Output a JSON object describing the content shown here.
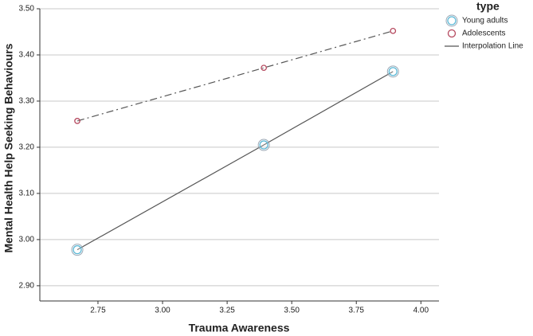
{
  "chart_data": {
    "type": "line",
    "x_label": "Trauma Awareness",
    "y_label": "Mental Health Help Seeking Behaviours",
    "legend_title": "type",
    "interpolation_label": "Interpolation Line",
    "x": [
      2.67,
      3.392,
      3.892
    ],
    "series": [
      {
        "name": "Young adults",
        "color": "#5bb8d6",
        "line_color": "#555555",
        "line_style": "solid",
        "values": [
          2.978,
          3.205,
          3.364
        ]
      },
      {
        "name": "Adolescents",
        "color": "#b5485e",
        "line_color": "#555555",
        "line_style": "dashdot",
        "values": [
          3.257,
          3.372,
          3.452
        ]
      }
    ],
    "xlim": [
      2.525,
      4.07
    ],
    "ylim": [
      2.867,
      3.5
    ],
    "xticks": [
      2.75,
      {
        "value": 3.0,
        "label": "3.00"
      },
      3.25,
      {
        "value": 3.5,
        "label": "3.50"
      },
      3.75,
      {
        "value": 4.0,
        "label": "4.00"
      }
    ],
    "yticks": [
      {
        "value": 2.9,
        "label": "2.90"
      },
      {
        "value": 3.0,
        "label": "3.00"
      },
      {
        "value": 3.1,
        "label": "3.10"
      },
      {
        "value": 3.2,
        "label": "3.20"
      },
      {
        "value": 3.3,
        "label": "3.30"
      },
      {
        "value": 3.4,
        "label": "3.40"
      },
      {
        "value": 3.5,
        "label": "3.50"
      }
    ],
    "grid": true
  }
}
